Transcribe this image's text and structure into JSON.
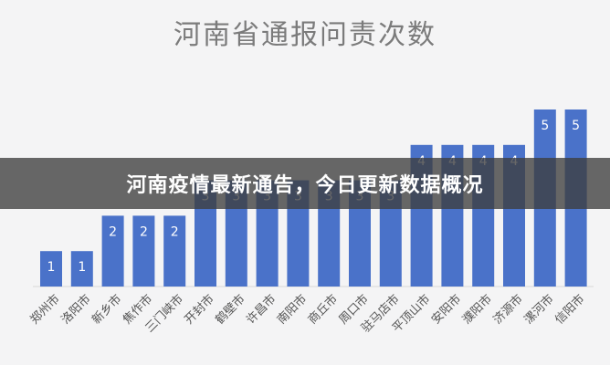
{
  "chart_data": {
    "type": "bar",
    "title": "河南省通报问责次数",
    "categories": [
      "郑州市",
      "洛阳市",
      "新乡市",
      "焦作市",
      "三门峡市",
      "开封市",
      "鹤壁市",
      "许昌市",
      "南阳市",
      "商丘市",
      "周口市",
      "驻马店市",
      "平顶山市",
      "安阳市",
      "濮阳市",
      "济源市",
      "漯河市",
      "信阳市"
    ],
    "values": [
      1,
      1,
      2,
      2,
      2,
      3,
      3,
      3,
      3,
      3,
      3,
      3,
      4,
      4,
      4,
      4,
      5,
      5
    ],
    "ylim": [
      0,
      5
    ],
    "grid": false,
    "bar_color": "#4a72c9"
  },
  "banner": {
    "text": "河南疫情最新通告，今日更新数据概况"
  }
}
